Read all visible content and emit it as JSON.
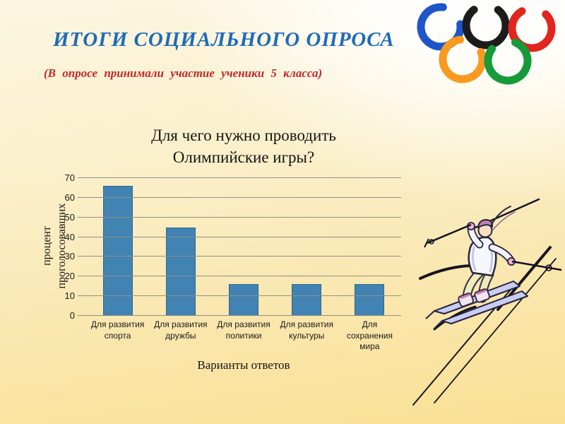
{
  "slide": {
    "title": "ИТОГИ СОЦИАЛЬНОГО ОПРОСА",
    "subtitle": "(В опросе принимали участие ученики 5 класса)"
  },
  "chart_data": {
    "type": "bar",
    "title": "Для чего нужно проводить Олимпийские игры?",
    "categories": [
      "Для развития спорта",
      "Для развития дружбы",
      "Для развития политики",
      "Для развития культуры",
      "Для сохранения мира"
    ],
    "values": [
      66,
      45,
      16,
      16,
      16
    ],
    "xlabel": "Варианты ответов",
    "ylabel": "процент проголосовавших",
    "ylim": [
      0,
      70
    ],
    "yticks": [
      0,
      10,
      20,
      30,
      40,
      50,
      60,
      70
    ],
    "grid": true,
    "legend": "none",
    "bar_color": "#4183B3"
  },
  "colors": {
    "title_blue": "#1E6BB8",
    "subtitle_red": "#C22929",
    "bar_fill": "#4183B3",
    "gridline": "#908F86",
    "background_top": "#FFFFFF",
    "background_bottom": "#F9E093"
  },
  "olympic_rings": {
    "icon": "olympic-rings-icon",
    "colors": [
      "#1E56C8",
      "#1C1C1C",
      "#E2251E",
      "#F79A1F",
      "#179B38"
    ]
  },
  "skier": {
    "icon": "skier-clipart"
  }
}
